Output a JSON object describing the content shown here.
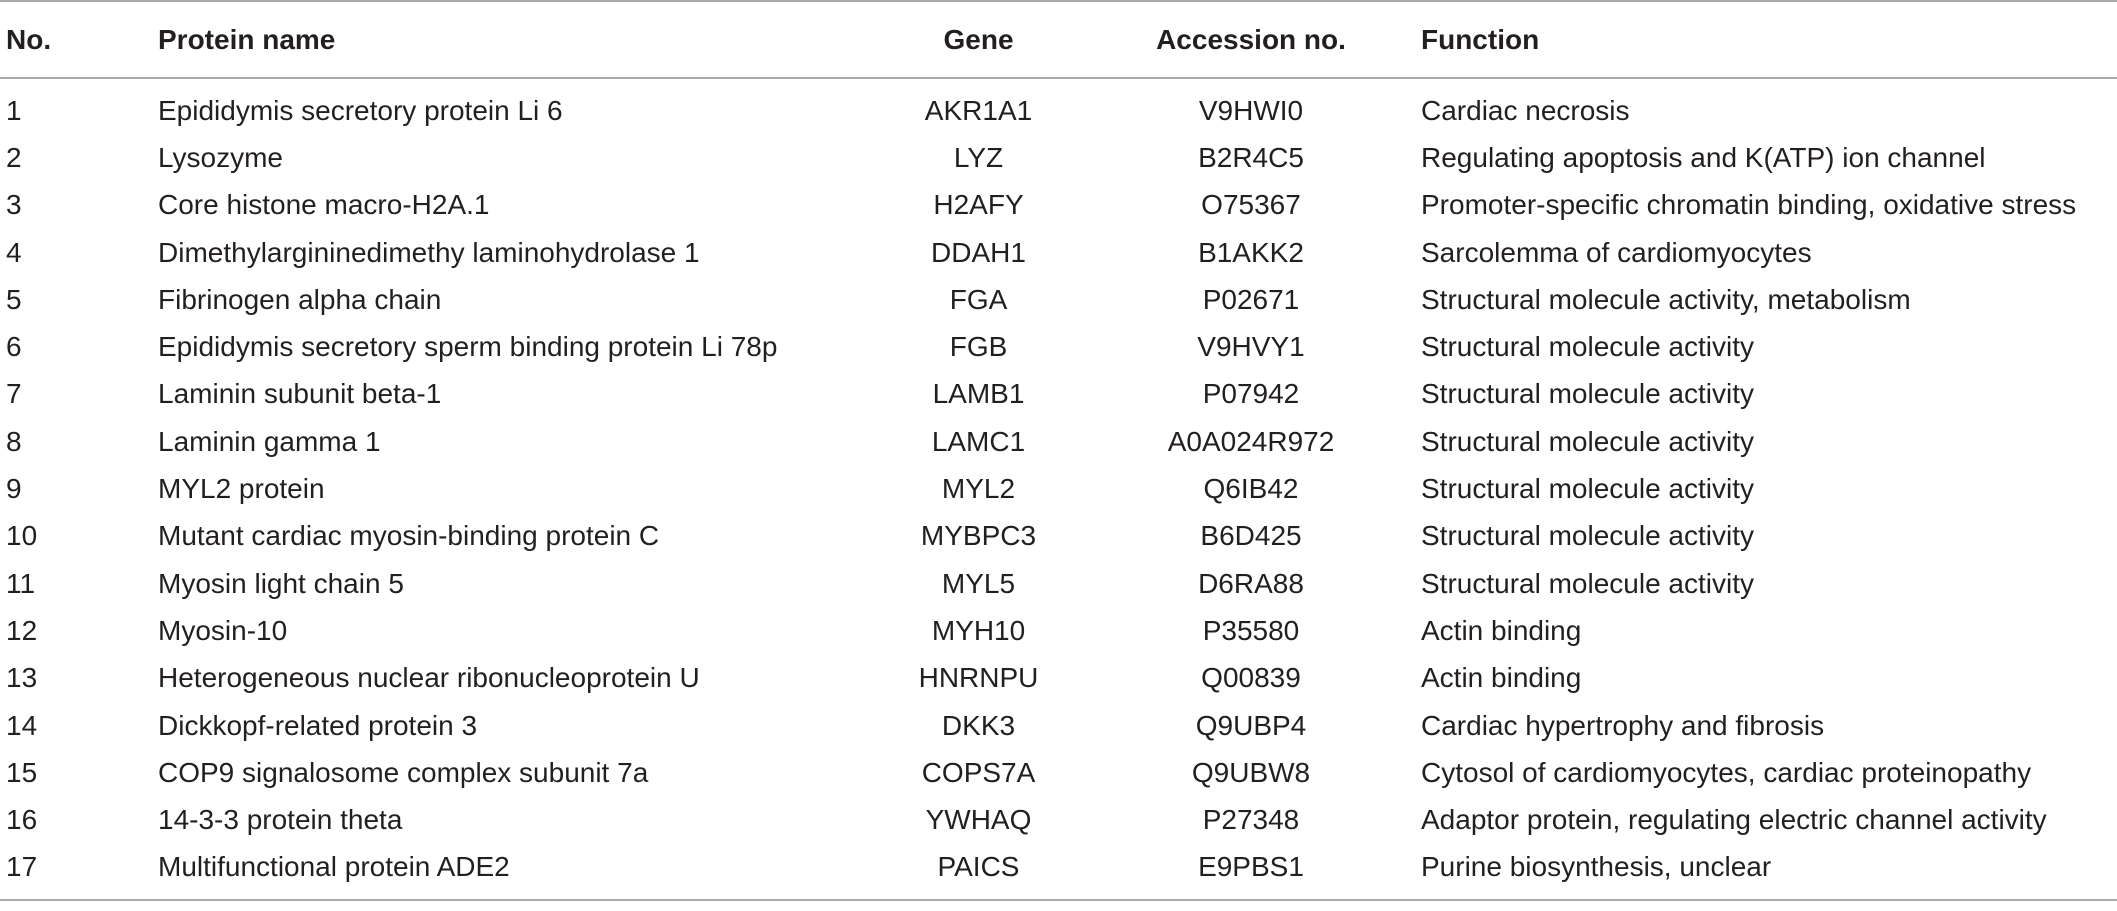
{
  "table": {
    "headers": {
      "no": "No.",
      "protein_name": "Protein name",
      "gene": "Gene",
      "accession": "Accession no.",
      "function": "Function"
    },
    "rows": [
      {
        "no": "1",
        "protein_name": "Epididymis secretory protein Li 6",
        "gene": "AKR1A1",
        "accession": "V9HWI0",
        "function": "Cardiac necrosis"
      },
      {
        "no": "2",
        "protein_name": "Lysozyme",
        "gene": "LYZ",
        "accession": "B2R4C5",
        "function": "Regulating apoptosis and K(ATP) ion channel"
      },
      {
        "no": "3",
        "protein_name": "Core histone macro-H2A.1",
        "gene": "H2AFY",
        "accession": "O75367",
        "function": "Promoter-specific chromatin binding, oxidative stress"
      },
      {
        "no": "4",
        "protein_name": "Dimethylargininedimethy laminohydrolase 1",
        "gene": "DDAH1",
        "accession": "B1AKK2",
        "function": "Sarcolemma of cardiomyocytes"
      },
      {
        "no": "5",
        "protein_name": "Fibrinogen alpha chain",
        "gene": "FGA",
        "accession": "P02671",
        "function": "Structural molecule activity, metabolism"
      },
      {
        "no": "6",
        "protein_name": "Epididymis secretory sperm binding protein Li 78p",
        "gene": "FGB",
        "accession": "V9HVY1",
        "function": "Structural molecule activity"
      },
      {
        "no": "7",
        "protein_name": "Laminin subunit beta-1",
        "gene": "LAMB1",
        "accession": "P07942",
        "function": "Structural molecule activity"
      },
      {
        "no": "8",
        "protein_name": "Laminin gamma 1",
        "gene": "LAMC1",
        "accession": "A0A024R972",
        "function": "Structural molecule activity"
      },
      {
        "no": "9",
        "protein_name": "MYL2 protein",
        "gene": "MYL2",
        "accession": "Q6IB42",
        "function": "Structural molecule activity"
      },
      {
        "no": "10",
        "protein_name": "Mutant cardiac myosin-binding protein C",
        "gene": "MYBPC3",
        "accession": "B6D425",
        "function": "Structural molecule activity"
      },
      {
        "no": "11",
        "protein_name": "Myosin light chain 5",
        "gene": "MYL5",
        "accession": "D6RA88",
        "function": "Structural molecule activity"
      },
      {
        "no": "12",
        "protein_name": "Myosin-10",
        "gene": "MYH10",
        "accession": "P35580",
        "function": "Actin binding"
      },
      {
        "no": "13",
        "protein_name": "Heterogeneous nuclear ribonucleoprotein U",
        "gene": "HNRNPU",
        "accession": "Q00839",
        "function": "Actin binding"
      },
      {
        "no": "14",
        "protein_name": "Dickkopf-related protein 3",
        "gene": "DKK3",
        "accession": "Q9UBP4",
        "function": "Cardiac hypertrophy and fibrosis"
      },
      {
        "no": "15",
        "protein_name": "COP9 signalosome complex subunit 7a",
        "gene": "COPS7A",
        "accession": "Q9UBW8",
        "function": "Cytosol of cardiomyocytes, cardiac proteinopathy"
      },
      {
        "no": "16",
        "protein_name": "14-3-3 protein theta",
        "gene": "YWHAQ",
        "accession": "P27348",
        "function": "Adaptor protein, regulating electric channel activity"
      },
      {
        "no": "17",
        "protein_name": "Multifunctional protein ADE2",
        "gene": "PAICS",
        "accession": "E9PBS1",
        "function": "Purine biosynthesis, unclear"
      }
    ]
  }
}
